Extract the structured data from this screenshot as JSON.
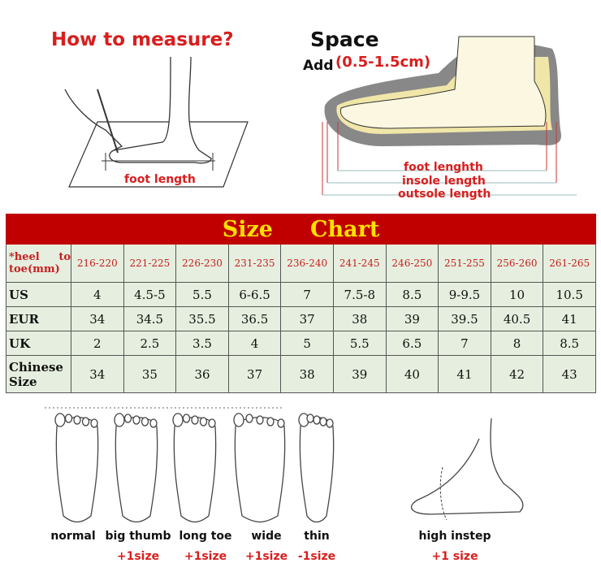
{
  "measure": {
    "title": "How to measure?",
    "foot_length_label": "foot length"
  },
  "space": {
    "title": "Space",
    "add_label": "Add",
    "add_range": "(0.5-1.5cm)",
    "foot_length": "foot lenghth",
    "insole_length": "insole length",
    "outsole_length": "outsole length"
  },
  "chart": {
    "title_left": "Size",
    "title_right": "Chart",
    "header_label": "*heel to toe(mm)",
    "columns": [
      "216-220",
      "221-225",
      "226-230",
      "231-235",
      "236-240",
      "241-245",
      "246-250",
      "251-255",
      "256-260",
      "261-265"
    ],
    "rows": [
      {
        "label": "US",
        "values": [
          "4",
          "4.5-5",
          "5.5",
          "6-6.5",
          "7",
          "7.5-8",
          "8.5",
          "9-9.5",
          "10",
          "10.5"
        ]
      },
      {
        "label": "EUR",
        "values": [
          "34",
          "34.5",
          "35.5",
          "36.5",
          "37",
          "38",
          "39",
          "39.5",
          "40.5",
          "41"
        ]
      },
      {
        "label": "UK",
        "values": [
          "2",
          "2.5",
          "3.5",
          "4",
          "5",
          "5.5",
          "6.5",
          "7",
          "8",
          "8.5"
        ]
      },
      {
        "label": "Chinese Size",
        "values": [
          "34",
          "35",
          "36",
          "37",
          "38",
          "39",
          "40",
          "41",
          "42",
          "43"
        ]
      }
    ]
  },
  "foot_types": [
    {
      "label": "normal",
      "adjust": ""
    },
    {
      "label": "big thumb",
      "adjust": "+1size"
    },
    {
      "label": "long toe",
      "adjust": "+1size"
    },
    {
      "label": "wide",
      "adjust": "+1size"
    },
    {
      "label": "thin",
      "adjust": "-1size"
    },
    {
      "label": "high instep",
      "adjust": "+1 size"
    }
  ],
  "colors": {
    "red": "#d81e1e",
    "header_bg": "#c00000",
    "header_text": "#ffe000",
    "cell_bg": "#e6efdf"
  }
}
